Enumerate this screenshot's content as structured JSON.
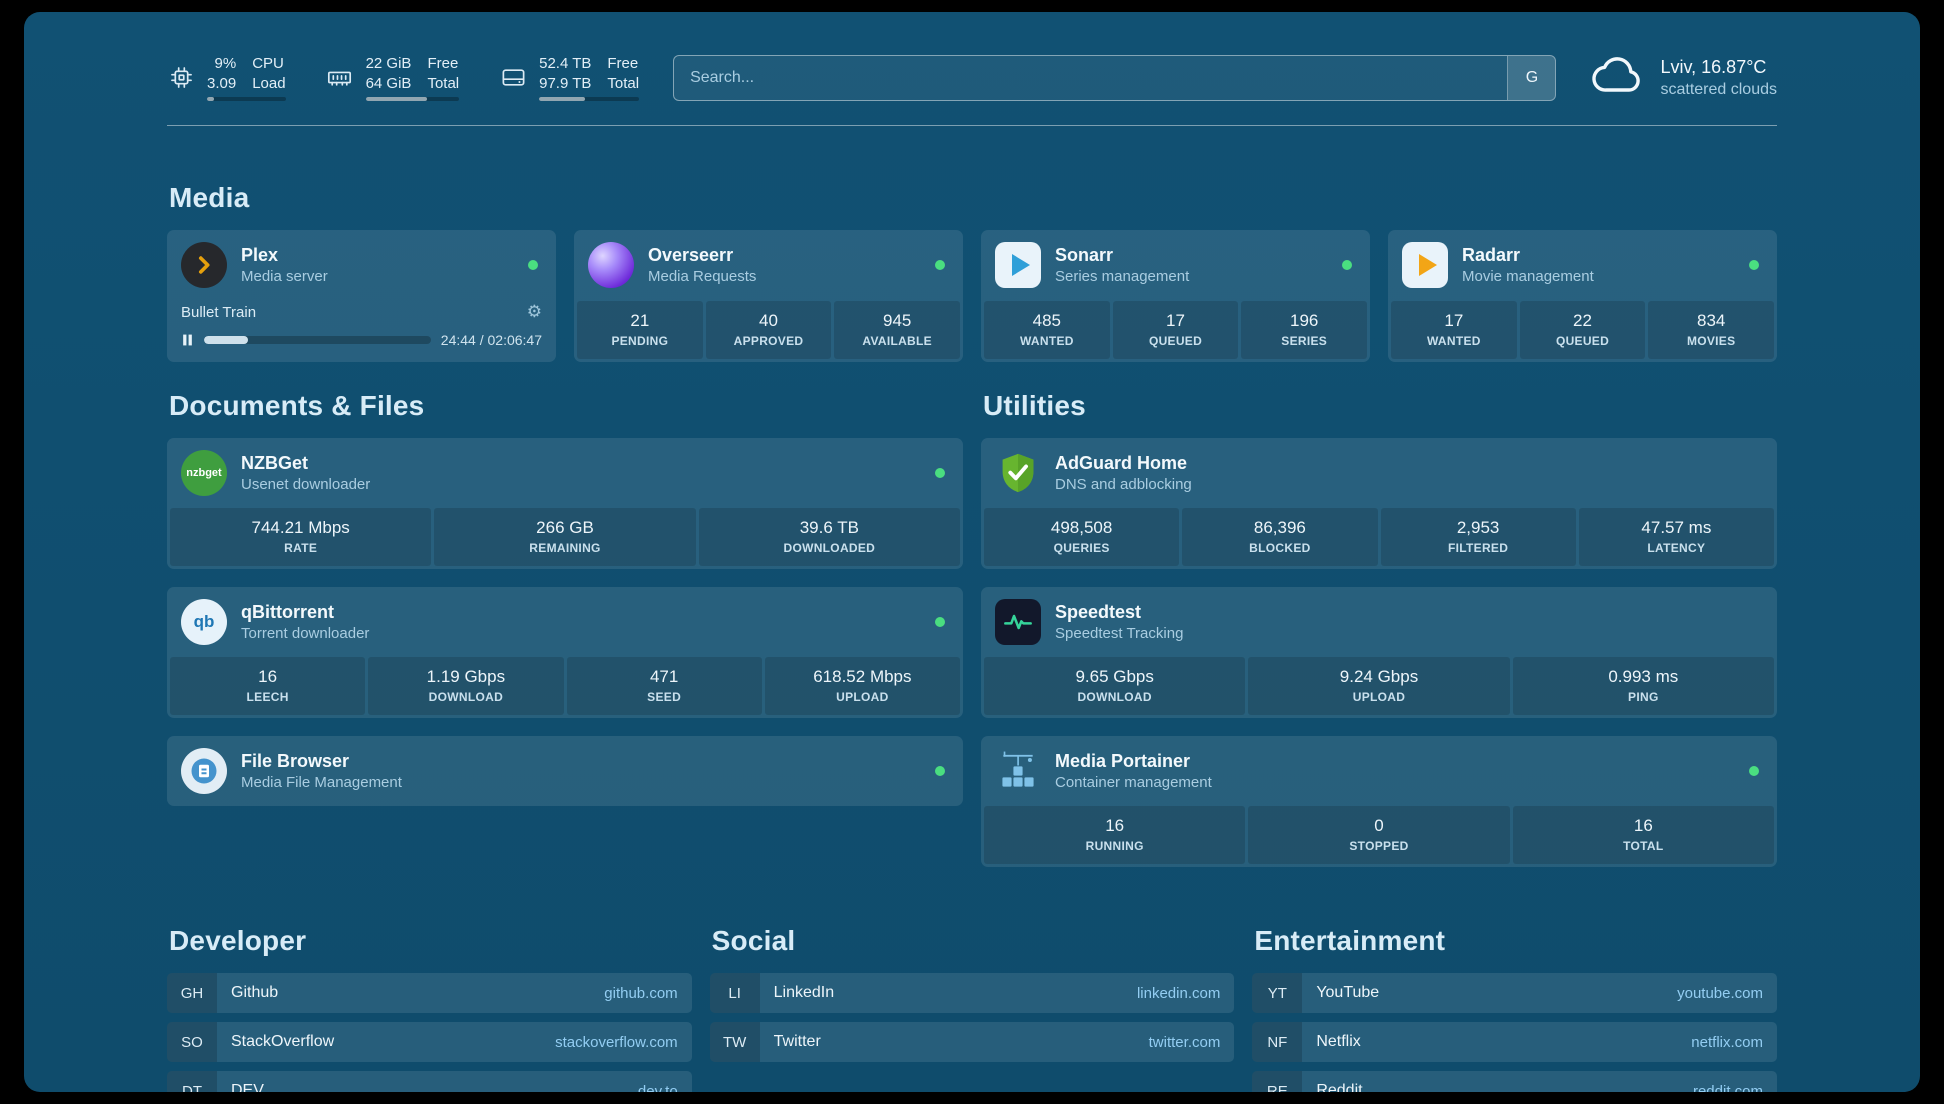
{
  "header": {
    "resources": [
      {
        "values": [
          "9%",
          "3.09"
        ],
        "labels": [
          "CPU",
          "Load"
        ],
        "progress": 9
      },
      {
        "values": [
          "22 GiB",
          "64 GiB"
        ],
        "labels": [
          "Free",
          "Total"
        ],
        "progress": 66
      },
      {
        "values": [
          "52.4 TB",
          "97.9 TB"
        ],
        "labels": [
          "Free",
          "Total"
        ],
        "progress": 46
      }
    ],
    "search": {
      "placeholder": "Search...",
      "provider": "G"
    },
    "weather": {
      "location": "Lviv, 16.87°C",
      "condition": "scattered clouds"
    }
  },
  "sections": {
    "media": {
      "title": "Media"
    },
    "documents": {
      "title": "Documents & Files"
    },
    "utilities": {
      "title": "Utilities"
    },
    "developer": {
      "title": "Developer"
    },
    "social": {
      "title": "Social"
    },
    "entertainment": {
      "title": "Entertainment"
    }
  },
  "services": {
    "plex": {
      "name": "Plex",
      "subtitle": "Media server",
      "now_playing": "Bullet Train",
      "time": "24:44 / 02:06:47",
      "progress": 19.5
    },
    "overseerr": {
      "name": "Overseerr",
      "subtitle": "Media Requests",
      "stats": [
        {
          "value": "21",
          "label": "PENDING"
        },
        {
          "value": "40",
          "label": "APPROVED"
        },
        {
          "value": "945",
          "label": "AVAILABLE"
        }
      ]
    },
    "sonarr": {
      "name": "Sonarr",
      "subtitle": "Series management",
      "stats": [
        {
          "value": "485",
          "label": "WANTED"
        },
        {
          "value": "17",
          "label": "QUEUED"
        },
        {
          "value": "196",
          "label": "SERIES"
        }
      ]
    },
    "radarr": {
      "name": "Radarr",
      "subtitle": "Movie management",
      "stats": [
        {
          "value": "17",
          "label": "WANTED"
        },
        {
          "value": "22",
          "label": "QUEUED"
        },
        {
          "value": "834",
          "label": "MOVIES"
        }
      ]
    },
    "nzbget": {
      "name": "NZBGet",
      "subtitle": "Usenet downloader",
      "logo_text": "nzbget",
      "stats": [
        {
          "value": "744.21 Mbps",
          "label": "RATE"
        },
        {
          "value": "266 GB",
          "label": "REMAINING"
        },
        {
          "value": "39.6 TB",
          "label": "DOWNLOADED"
        }
      ]
    },
    "qbittorrent": {
      "name": "qBittorrent",
      "subtitle": "Torrent downloader",
      "logo_text": "qb",
      "stats": [
        {
          "value": "16",
          "label": "LEECH"
        },
        {
          "value": "1.19 Gbps",
          "label": "DOWNLOAD"
        },
        {
          "value": "471",
          "label": "SEED"
        },
        {
          "value": "618.52 Mbps",
          "label": "UPLOAD"
        }
      ]
    },
    "filebrowser": {
      "name": "File Browser",
      "subtitle": "Media File Management"
    },
    "adguard": {
      "name": "AdGuard Home",
      "subtitle": "DNS and adblocking",
      "stats": [
        {
          "value": "498,508",
          "label": "QUERIES"
        },
        {
          "value": "86,396",
          "label": "BLOCKED"
        },
        {
          "value": "2,953",
          "label": "FILTERED"
        },
        {
          "value": "47.57 ms",
          "label": "LATENCY"
        }
      ]
    },
    "speedtest": {
      "name": "Speedtest",
      "subtitle": "Speedtest Tracking",
      "stats": [
        {
          "value": "9.65 Gbps",
          "label": "DOWNLOAD"
        },
        {
          "value": "9.24 Gbps",
          "label": "UPLOAD"
        },
        {
          "value": "0.993 ms",
          "label": "PING"
        }
      ]
    },
    "portainer": {
      "name": "Media Portainer",
      "subtitle": "Container management",
      "stats": [
        {
          "value": "16",
          "label": "RUNNING"
        },
        {
          "value": "0",
          "label": "STOPPED"
        },
        {
          "value": "16",
          "label": "TOTAL"
        }
      ]
    }
  },
  "bookmarks": {
    "developer": [
      {
        "abbr": "GH",
        "name": "Github",
        "url": "github.com"
      },
      {
        "abbr": "SO",
        "name": "StackOverflow",
        "url": "stackoverflow.com"
      },
      {
        "abbr": "DT",
        "name": "DEV",
        "url": "dev.to"
      }
    ],
    "social": [
      {
        "abbr": "LI",
        "name": "LinkedIn",
        "url": "linkedin.com"
      },
      {
        "abbr": "TW",
        "name": "Twitter",
        "url": "twitter.com"
      }
    ],
    "entertainment": [
      {
        "abbr": "YT",
        "name": "YouTube",
        "url": "youtube.com"
      },
      {
        "abbr": "NF",
        "name": "Netflix",
        "url": "netflix.com"
      },
      {
        "abbr": "RE",
        "name": "Reddit",
        "url": "reddit.com"
      }
    ]
  },
  "colors": {
    "background": "#104e70",
    "status_online": "#4ade80",
    "bookmark_link": "#93cdf2",
    "plex_accent": "#e5a00d",
    "sonarr_accent": "#2f9fd8",
    "radarr_accent": "#f2a516",
    "nzbget_green": "#3f9e3f",
    "adguard_green": "#67b52f",
    "speedtest_green": "#35d49a",
    "overseerr_purple": "#6d28d9",
    "portainer_blue": "#7fc2e8"
  }
}
